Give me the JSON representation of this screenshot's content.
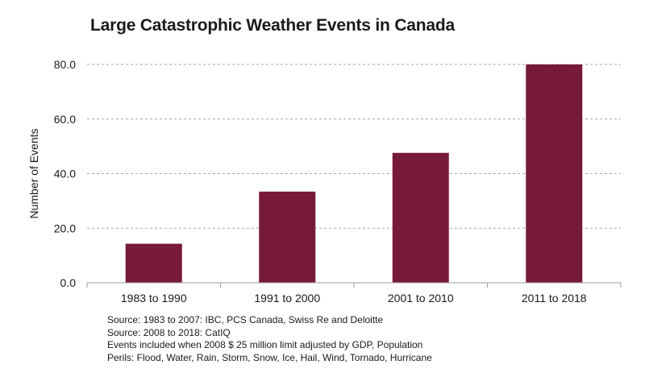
{
  "chart_data": {
    "type": "bar",
    "title": "Large Catastrophic Weather Events in Canada",
    "xlabel": "",
    "ylabel": "Number of Events",
    "categories": [
      "1983 to 1990",
      "1991 to 2000",
      "2001 to 2010",
      "2011 to 2018"
    ],
    "values": [
      14.3,
      33.4,
      47.6,
      80.0
    ],
    "ylim": [
      0,
      80
    ],
    "yticks": [
      "0.0",
      "20.0",
      "40.0",
      "60.0",
      "80.0"
    ],
    "grid": "horizontal dashed",
    "legend": "none",
    "bar_color": "#761a38"
  },
  "footnotes": [
    "Source: 1983 to 2007: IBC, PCS Canada, Swiss Re and Deloitte",
    "Source: 2008 to 2018: CatIQ",
    "Events included when 2008 $ 25 million limit adjusted by GDP, Population",
    "Perils: Flood, Water, Rain, Storm, Snow, Ice, Hail, Wind, Tornado, Hurricane"
  ]
}
